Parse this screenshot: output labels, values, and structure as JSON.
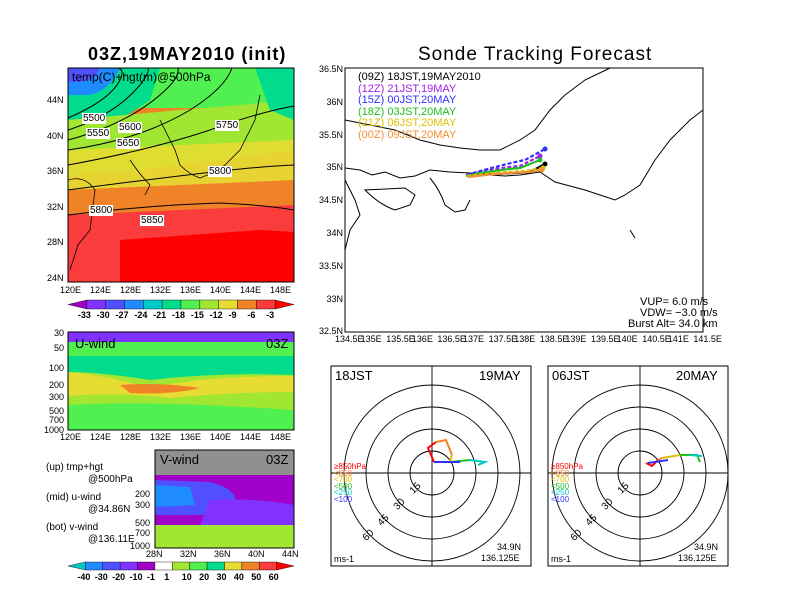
{
  "left": {
    "title": "03Z,19MAY2010 (init)",
    "map": {
      "label": "temp(C)+hgt(m)@500hPa",
      "lat_ticks": [
        "44N",
        "40N",
        "36N",
        "32N",
        "28N",
        "24N"
      ],
      "lon_ticks": [
        "120E",
        "124E",
        "128E",
        "132E",
        "136E",
        "140E",
        "144E",
        "148E"
      ],
      "contour_labels": [
        "5500",
        "5550",
        "5600",
        "5650",
        "5750",
        "5800",
        "5800",
        "5850"
      ]
    },
    "temp_colorbar": [
      "-33",
      "-30",
      "-27",
      "-24",
      "-21",
      "-18",
      "-15",
      "-12",
      "-9",
      "-6",
      "-3"
    ],
    "u_wind": {
      "title": "U-wind",
      "time": "03Z",
      "p_ticks": [
        "30",
        "50",
        "100",
        "200",
        "300",
        "500",
        "700",
        "1000"
      ],
      "lon_ticks": [
        "120E",
        "124E",
        "128E",
        "132E",
        "136E",
        "140E",
        "144E",
        "148E"
      ]
    },
    "v_wind": {
      "title": "V-wind",
      "time": "03Z",
      "p_ticks": [
        "200",
        "300",
        "500",
        "700",
        "1000"
      ],
      "lat_ticks": [
        "28N",
        "32N",
        "36N",
        "40N",
        "44N"
      ]
    },
    "legend_notes": [
      {
        "a": "(up) tmp+hgt",
        "b": "@500hPa"
      },
      {
        "a": "(mid) u-wind",
        "b": "@34.86N"
      },
      {
        "a": "(bot) v-wind",
        "b": "@136.11E"
      }
    ],
    "wind_colorbar": [
      "-40",
      "-30",
      "-20",
      "-10",
      "-1",
      "1",
      "10",
      "20",
      "30",
      "40",
      "50",
      "60"
    ]
  },
  "right": {
    "title": "Sonde Tracking Forecast",
    "track_legend": [
      {
        "label": "(09Z)  18JST,19MAY2010",
        "color": "#000000"
      },
      {
        "label": "(12Z)  21JST,19MAY",
        "color": "#a020f0"
      },
      {
        "label": "(15Z)  00JST,20MAY",
        "color": "#3030ff"
      },
      {
        "label": "(18Z)  03JST,20MAY",
        "color": "#20c020"
      },
      {
        "label": "(21Z)  06JST,20MAY",
        "color": "#e0c000"
      },
      {
        "label": "(00Z)  09JST,20MAY",
        "color": "#f09030"
      }
    ],
    "lat_ticks": [
      "36.5N",
      "36N",
      "35.5N",
      "35N",
      "34.5N",
      "34N",
      "33.5N",
      "33N",
      "32.5N"
    ],
    "lon_ticks": [
      "134.5E",
      "135E",
      "135.5E",
      "136E",
      "136.5E",
      "137E",
      "137.5E",
      "138E",
      "138.5E",
      "139E",
      "139.5E",
      "140E",
      "140.5E",
      "141E",
      "141.5E"
    ],
    "params": [
      "VUP=  6.0  m/s",
      "VDW= −3.0  m/s",
      "Burst Alt=  34.0  km"
    ]
  },
  "hodographs": [
    {
      "left_label": "18JST",
      "right_label": "19MAY",
      "ring_labels": [
        "15",
        "30",
        "45",
        "60"
      ],
      "levels": [
        "≥850hPa",
        "<850",
        "<700",
        "<500",
        "<250",
        "<100"
      ],
      "units": "ms-1",
      "loc1": "34.9N",
      "loc2": "136.125E"
    },
    {
      "left_label": "06JST",
      "right_label": "20MAY",
      "ring_labels": [
        "15",
        "30",
        "45",
        "60"
      ],
      "levels": [
        "≥850hPa",
        "<850",
        "<700",
        "<500",
        "<250",
        "<100"
      ],
      "units": "ms-1",
      "loc1": "34.9N",
      "loc2": "136.125E"
    }
  ],
  "colors": {
    "temp_scale": [
      "#a000c8",
      "#8232ff",
      "#5050ff",
      "#1e8cff",
      "#00c8c8",
      "#00dc8c",
      "#50f050",
      "#a0e632",
      "#e6dc32",
      "#f08228",
      "#fa3c3c",
      "#ff0000"
    ],
    "wind_scale": [
      "#00c8c8",
      "#1e8cff",
      "#5050ff",
      "#8232ff",
      "#a000c8",
      "#ffffff",
      "#a0e632",
      "#50f050",
      "#00dc8c",
      "#e6dc32",
      "#f08228",
      "#fa3c3c",
      "#ff0000"
    ]
  }
}
